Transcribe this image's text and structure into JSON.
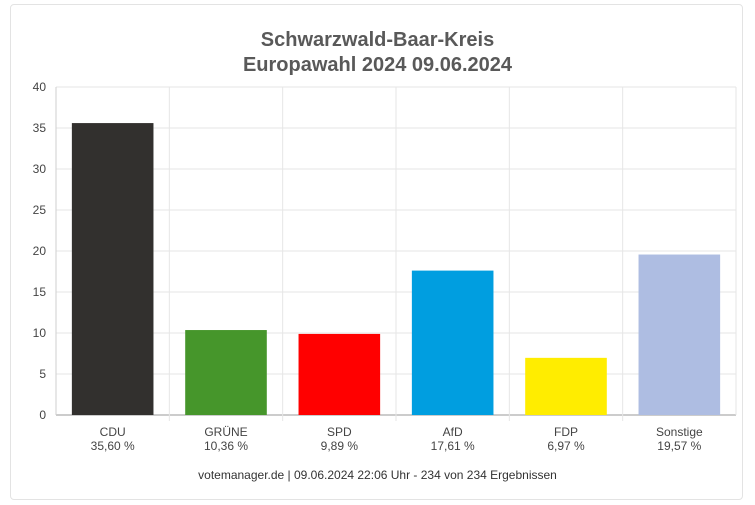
{
  "chart_data": {
    "type": "bar",
    "title": "Schwarzwald-Baar-Kreis",
    "subtitle": "Europawahl 2024 09.06.2024",
    "categories": [
      "CDU",
      "GRÜNE",
      "SPD",
      "AfD",
      "FDP",
      "Sonstige"
    ],
    "values": [
      35.6,
      10.36,
      9.89,
      17.61,
      6.97,
      19.57
    ],
    "value_labels": [
      "35,60 %",
      "10,36 %",
      "9,89 %",
      "17,61 %",
      "6,97 %",
      "19,57 %"
    ],
    "colors": [
      "#32302e",
      "#46962b",
      "#ff0000",
      "#009ee0",
      "#ffed00",
      "#aebde2"
    ],
    "yticks": [
      "0",
      "5",
      "10",
      "15",
      "20",
      "25",
      "30",
      "35",
      "40"
    ],
    "ylim": [
      0,
      40
    ],
    "grid": true,
    "xlabel": "",
    "ylabel": ""
  },
  "footer": "votemanager.de | 09.06.2024 22:06 Uhr - 234 von 234 Ergebnissen"
}
